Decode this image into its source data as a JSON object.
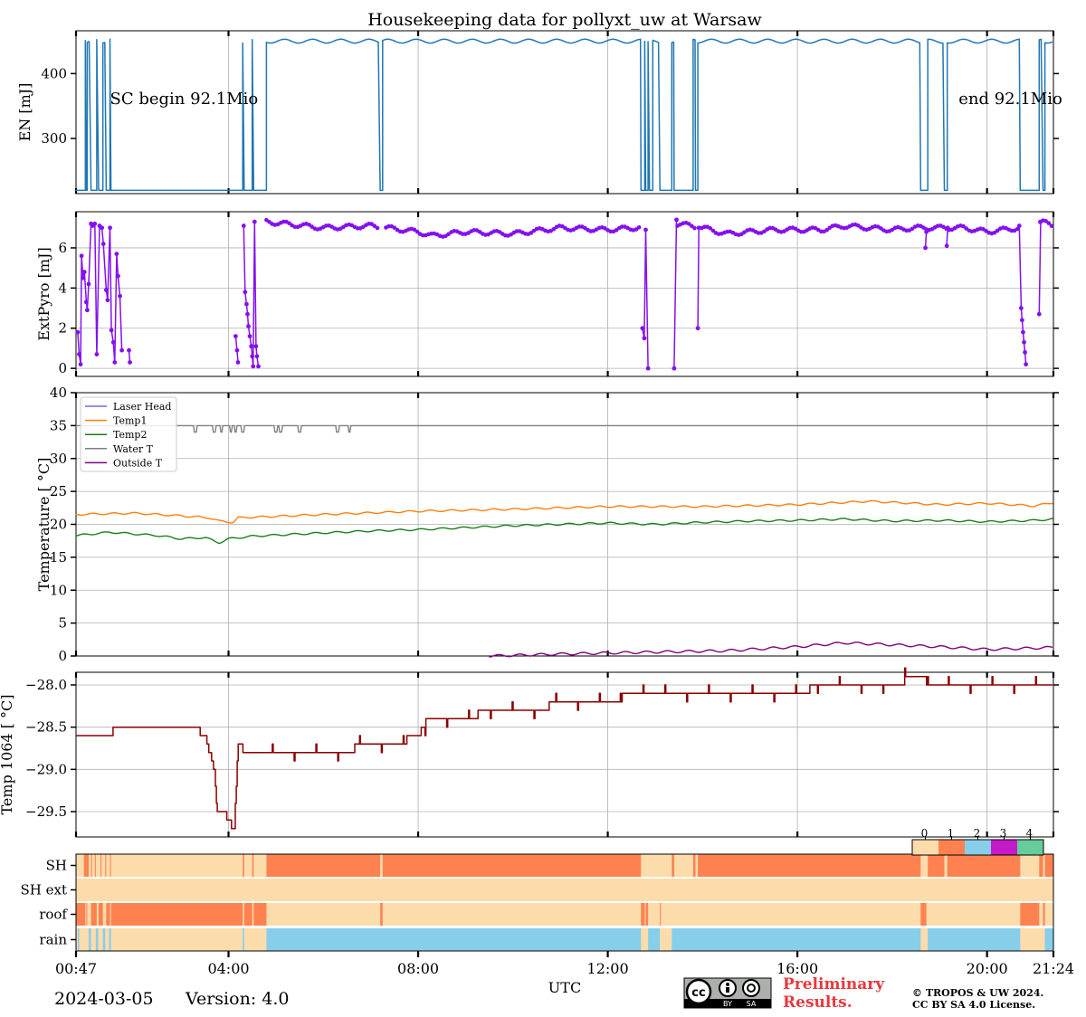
{
  "title": "Housekeeping data for pollyxt_uw at Warsaw",
  "date_label": "2024-03-05",
  "version_label": "Version: 4.0",
  "x_label": "UTC",
  "x_ticks": [
    {
      "h": 0.7833,
      "label": "00:47"
    },
    {
      "h": 4,
      "label": "04:00"
    },
    {
      "h": 8,
      "label": "08:00"
    },
    {
      "h": 12,
      "label": "12:00"
    },
    {
      "h": 16,
      "label": "16:00"
    },
    {
      "h": 20,
      "label": "20:00"
    },
    {
      "h": 21.4,
      "label": "21:24"
    }
  ],
  "footer": {
    "license_badge": [
      "cc",
      "BY",
      "SA"
    ],
    "preliminary_line1": "Preliminary",
    "preliminary_line2": "Results.",
    "copyright_line1": "© TROPOS & UW 2024.",
    "copyright_line2": "CC BY SA 4.0 License.",
    "preliminary_color": "#e8393f"
  },
  "chart_data": [
    {
      "id": "en",
      "type": "line",
      "ylabel": "EN [mJ]",
      "ylim": [
        215,
        466
      ],
      "yticks": [
        300,
        400
      ],
      "x_range_hours": [
        0.7833,
        21.4
      ],
      "color": "#1f77b4",
      "annotations": [
        {
          "text": "SC begin 92.1Mio",
          "h": 1.5,
          "y": 360
        },
        {
          "text": "end 92.1Mio",
          "h": 19.4,
          "y": 360
        }
      ],
      "high_value": 450,
      "low_value": 220,
      "low_intervals": [
        [
          0.78,
          0.98
        ],
        [
          1.0,
          1.02
        ],
        [
          1.1,
          1.22
        ],
        [
          1.26,
          1.35
        ],
        [
          1.42,
          1.5
        ],
        [
          1.52,
          4.3
        ],
        [
          4.33,
          4.5
        ],
        [
          4.53,
          4.8
        ],
        [
          7.2,
          7.25
        ],
        [
          12.7,
          12.78
        ],
        [
          12.8,
          12.85
        ],
        [
          12.88,
          12.95
        ],
        [
          13.1,
          13.35
        ],
        [
          13.4,
          13.8
        ],
        [
          13.85,
          13.9
        ],
        [
          18.6,
          18.75
        ],
        [
          19.1,
          19.16
        ],
        [
          20.7,
          21.1
        ],
        [
          21.18,
          21.22
        ]
      ]
    },
    {
      "id": "extpyro",
      "type": "scatter_line",
      "ylabel": "ExtPyro [mJ]",
      "ylim": [
        -0.4,
        7.8
      ],
      "yticks": [
        0,
        2,
        4,
        6
      ],
      "x_range_hours": [
        0.7833,
        21.4
      ],
      "color": "#8410ee",
      "segments": [
        [
          [
            0.82,
            1.8
          ],
          [
            0.85,
            0.7
          ],
          [
            0.88,
            0.2
          ],
          [
            0.9,
            5.6
          ],
          [
            0.93,
            4.5
          ],
          [
            0.96,
            4.8
          ],
          [
            1.0,
            3.3
          ],
          [
            1.02,
            2.9
          ],
          [
            1.05,
            4.2
          ],
          [
            1.1,
            7.2
          ],
          [
            1.13,
            7.1
          ],
          [
            1.18,
            7.2
          ],
          [
            1.22,
            0.7
          ],
          [
            1.28,
            7.1
          ],
          [
            1.33,
            7.0
          ],
          [
            1.36,
            6.2
          ],
          [
            1.42,
            3.9
          ],
          [
            1.45,
            3.4
          ],
          [
            1.5,
            7.0
          ],
          [
            1.53,
            1.9
          ],
          [
            1.57,
            1.3
          ],
          [
            1.6,
            0.3
          ],
          [
            1.64,
            5.7
          ],
          [
            1.67,
            4.6
          ],
          [
            1.71,
            3.6
          ],
          [
            1.75,
            0.9
          ]
        ],
        [
          [
            1.9,
            0.9
          ],
          [
            1.92,
            0.3
          ]
        ],
        [
          [
            4.15,
            1.6
          ],
          [
            4.18,
            0.9
          ],
          [
            4.2,
            0.3
          ]
        ],
        [
          [
            4.32,
            7.1
          ],
          [
            4.35,
            3.8
          ],
          [
            4.38,
            3.2
          ],
          [
            4.4,
            2.7
          ],
          [
            4.42,
            2.1
          ],
          [
            4.45,
            1.6
          ],
          [
            4.48,
            1.1
          ],
          [
            4.5,
            0.6
          ],
          [
            4.52,
            0.1
          ],
          [
            4.55,
            7.3
          ],
          [
            4.58,
            1.1
          ],
          [
            4.6,
            0.6
          ],
          [
            4.63,
            0.1
          ]
        ],
        [
          [
            12.73,
            2.0
          ],
          [
            12.77,
            1.5
          ],
          [
            12.8,
            6.9
          ],
          [
            12.85,
            0.0
          ]
        ],
        [
          [
            13.4,
            0.0
          ],
          [
            13.45,
            7.4
          ]
        ],
        [
          [
            13.9,
            2.0
          ],
          [
            13.92,
            7.0
          ]
        ],
        [
          [
            18.7,
            6.0
          ],
          [
            18.72,
            6.8
          ]
        ],
        [
          [
            19.15,
            6.1
          ],
          [
            19.17,
            7.0
          ]
        ],
        [
          [
            20.68,
            7.1
          ],
          [
            20.72,
            3.0
          ],
          [
            20.74,
            2.4
          ],
          [
            20.76,
            1.8
          ],
          [
            20.78,
            1.3
          ],
          [
            20.8,
            0.8
          ],
          [
            20.82,
            0.2
          ]
        ],
        [
          [
            21.1,
            2.7
          ],
          [
            21.13,
            7.3
          ]
        ]
      ],
      "continuous_start_h": 4.8,
      "continuous_end_h": 21.4,
      "continuous_knots": [
        [
          4.8,
          7.3
        ],
        [
          6.0,
          7.0
        ],
        [
          7.0,
          7.1
        ],
        [
          8.0,
          6.8
        ],
        [
          8.3,
          6.6
        ],
        [
          9.0,
          6.8
        ],
        [
          10.0,
          6.7
        ],
        [
          11.0,
          7.0
        ],
        [
          12.0,
          6.9
        ],
        [
          12.6,
          7.0
        ],
        [
          13.5,
          7.2
        ],
        [
          14.0,
          7.0
        ],
        [
          14.5,
          6.7
        ],
        [
          15.5,
          6.9
        ],
        [
          16.5,
          6.9
        ],
        [
          17.0,
          7.1
        ],
        [
          18.0,
          6.9
        ],
        [
          18.5,
          7.0
        ],
        [
          19.5,
          7.0
        ],
        [
          20.0,
          6.8
        ],
        [
          20.7,
          7.0
        ],
        [
          21.15,
          7.3
        ],
        [
          21.4,
          7.1
        ]
      ],
      "continuous_gaps": [
        [
          7.18,
          7.32
        ],
        [
          12.7,
          13.45
        ],
        [
          13.88,
          13.95
        ],
        [
          20.65,
          21.12
        ]
      ]
    },
    {
      "id": "temperature",
      "type": "line",
      "ylabel": "Temperature [$^\\circ C$]",
      "ylabel_display": "Temperature [ °C]",
      "ylim": [
        0,
        40
      ],
      "yticks": [
        0,
        5,
        10,
        15,
        20,
        25,
        30,
        35,
        40
      ],
      "x_range_hours": [
        0.7833,
        21.4
      ],
      "legend_position": "top-left",
      "series": [
        {
          "name": "Laser Head",
          "color": "#6b6be8",
          "knots": []
        },
        {
          "name": "Temp1",
          "color": "#ff7f0e",
          "knots": [
            [
              0.78,
              21.5
            ],
            [
              2.0,
              21.7
            ],
            [
              3.0,
              21.3
            ],
            [
              3.6,
              21.0
            ],
            [
              3.8,
              20.5
            ],
            [
              4.1,
              20.3
            ],
            [
              4.2,
              21.0
            ],
            [
              6.0,
              21.5
            ],
            [
              8.0,
              22.0
            ],
            [
              10.0,
              22.3
            ],
            [
              12.0,
              22.7
            ],
            [
              14.0,
              22.7
            ],
            [
              16.0,
              23.0
            ],
            [
              17.5,
              23.5
            ],
            [
              19.0,
              23.0
            ],
            [
              20.0,
              23.2
            ],
            [
              21.0,
              22.8
            ],
            [
              21.4,
              23.3
            ]
          ]
        },
        {
          "name": "Temp2",
          "color": "#1a7f1a",
          "knots": [
            [
              0.78,
              18.3
            ],
            [
              1.5,
              18.8
            ],
            [
              2.5,
              18.3
            ],
            [
              3.0,
              17.8
            ],
            [
              3.5,
              18.0
            ],
            [
              3.8,
              17.2
            ],
            [
              4.0,
              17.8
            ],
            [
              4.5,
              18.2
            ],
            [
              6.0,
              18.7
            ],
            [
              7.0,
              19.0
            ],
            [
              8.0,
              19.2
            ],
            [
              9.0,
              19.5
            ],
            [
              10.0,
              19.8
            ],
            [
              12.0,
              20.2
            ],
            [
              13.0,
              20.0
            ],
            [
              14.0,
              20.3
            ],
            [
              15.0,
              20.5
            ],
            [
              16.0,
              20.6
            ],
            [
              17.0,
              20.8
            ],
            [
              18.0,
              20.5
            ],
            [
              19.0,
              20.6
            ],
            [
              20.0,
              20.4
            ],
            [
              21.0,
              20.6
            ],
            [
              21.4,
              20.8
            ]
          ]
        },
        {
          "name": "Water T",
          "color": "#808080",
          "knots": [
            [
              0.78,
              35
            ],
            [
              21.4,
              35
            ]
          ],
          "dips": [
            3.3,
            3.7,
            3.85,
            4.05,
            4.15,
            4.3,
            5.0,
            5.1,
            5.5,
            6.3,
            6.55
          ]
        },
        {
          "name": "Outside T",
          "color": "#800080",
          "knots": [
            [
              9.5,
              0.0
            ],
            [
              11.0,
              0.3
            ],
            [
              13.0,
              0.6
            ],
            [
              14.5,
              0.8
            ],
            [
              16.0,
              1.4
            ],
            [
              17.0,
              2.0
            ],
            [
              18.0,
              1.7
            ],
            [
              19.0,
              1.4
            ],
            [
              20.0,
              1.0
            ],
            [
              21.0,
              1.2
            ],
            [
              21.4,
              1.3
            ]
          ]
        }
      ]
    },
    {
      "id": "temp1064",
      "type": "step",
      "ylabel": "Temp 1064 [$^\\circ C$]",
      "ylabel_display": "Temp 1064 [ °C]",
      "ylim": [
        -29.8,
        -27.85
      ],
      "yticks": [
        -28.0,
        -28.5,
        -29.0,
        -29.5
      ],
      "ytick_labels": [
        "−28.0",
        "−28.5",
        "−29.0",
        "−29.5"
      ],
      "x_range_hours": [
        0.7833,
        21.4
      ],
      "color": "#8b0000",
      "knots": [
        [
          0.78,
          -28.6
        ],
        [
          1.5,
          -28.6
        ],
        [
          1.6,
          -28.5
        ],
        [
          3.3,
          -28.5
        ],
        [
          3.5,
          -28.6
        ],
        [
          3.7,
          -29.0
        ],
        [
          3.75,
          -29.5
        ],
        [
          3.9,
          -29.5
        ],
        [
          4.0,
          -29.6
        ],
        [
          4.12,
          -29.7
        ],
        [
          4.2,
          -28.7
        ],
        [
          4.4,
          -28.8
        ],
        [
          6.5,
          -28.8
        ],
        [
          6.8,
          -28.7
        ],
        [
          7.5,
          -28.7
        ],
        [
          8.0,
          -28.6
        ],
        [
          8.2,
          -28.4
        ],
        [
          9.0,
          -28.4
        ],
        [
          9.5,
          -28.3
        ],
        [
          10.5,
          -28.3
        ],
        [
          11.0,
          -28.2
        ],
        [
          12.0,
          -28.2
        ],
        [
          12.5,
          -28.1
        ],
        [
          14.0,
          -28.1
        ],
        [
          14.5,
          -28.1
        ],
        [
          15.0,
          -28.1
        ],
        [
          16.0,
          -28.1
        ],
        [
          16.5,
          -28.0
        ],
        [
          18.0,
          -28.0
        ],
        [
          18.5,
          -27.9
        ],
        [
          19.0,
          -28.0
        ],
        [
          21.4,
          -28.0
        ]
      ]
    },
    {
      "id": "flags",
      "type": "heatmap",
      "rows": [
        "SH",
        "SH ext",
        "roof",
        "rain"
      ],
      "colorbar_ticks": [
        "0",
        "1",
        "2",
        "3",
        "4"
      ],
      "colors": [
        "#fddcab",
        "#fe8250",
        "#87ceeb",
        "#c51ac7",
        "#66cc99"
      ],
      "rows_data": {
        "SH": {
          "default": 0,
          "blocks": [
            [
              0.95,
              1.05,
              1
            ],
            [
              1.1,
              1.12,
              1
            ],
            [
              1.18,
              1.2,
              1
            ],
            [
              1.3,
              1.32,
              1
            ],
            [
              1.4,
              1.42,
              1
            ],
            [
              1.5,
              1.52,
              1
            ],
            [
              4.3,
              4.33,
              1
            ],
            [
              4.5,
              4.53,
              1
            ],
            [
              4.8,
              7.2,
              1
            ],
            [
              7.25,
              12.7,
              1
            ],
            [
              13.35,
              13.4,
              1
            ],
            [
              13.8,
              13.85,
              1
            ],
            [
              13.9,
              18.6,
              1
            ],
            [
              18.75,
              19.1,
              1
            ],
            [
              19.16,
              20.7,
              1
            ],
            [
              21.1,
              21.18,
              1
            ],
            [
              21.22,
              21.4,
              1
            ]
          ]
        },
        "SH ext": {
          "default": 0,
          "blocks": []
        },
        "roof": {
          "default": 0,
          "blocks": [
            [
              0.78,
              0.98,
              1
            ],
            [
              1.0,
              1.02,
              1
            ],
            [
              1.1,
              1.22,
              1
            ],
            [
              1.26,
              1.35,
              1
            ],
            [
              1.42,
              1.5,
              1
            ],
            [
              1.52,
              4.3,
              1
            ],
            [
              4.33,
              4.5,
              1
            ],
            [
              4.53,
              4.8,
              1
            ],
            [
              7.2,
              7.25,
              1
            ],
            [
              12.7,
              12.78,
              1
            ],
            [
              12.8,
              12.85,
              1
            ],
            [
              13.1,
              13.12,
              1
            ],
            [
              18.6,
              18.72,
              1
            ],
            [
              20.7,
              21.1,
              1
            ],
            [
              21.18,
              21.22,
              1
            ]
          ]
        },
        "rain": {
          "default": 0,
          "blocks": [
            [
              0.82,
              0.85,
              2
            ],
            [
              1.05,
              1.1,
              2
            ],
            [
              1.2,
              1.25,
              2
            ],
            [
              1.35,
              1.4,
              2
            ],
            [
              1.48,
              1.52,
              2
            ],
            [
              4.3,
              4.33,
              2
            ],
            [
              4.8,
              12.7,
              2
            ],
            [
              12.85,
              13.1,
              2
            ],
            [
              13.35,
              18.6,
              2
            ],
            [
              18.75,
              20.7,
              2
            ],
            [
              21.22,
              21.4,
              2
            ]
          ]
        }
      }
    }
  ]
}
